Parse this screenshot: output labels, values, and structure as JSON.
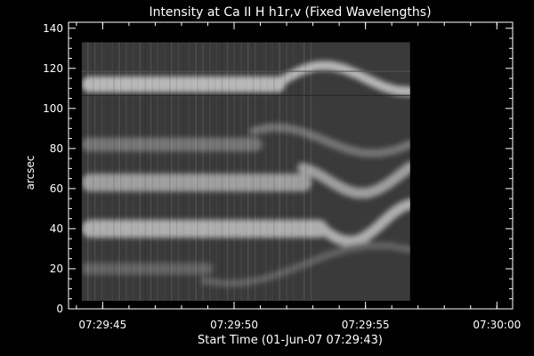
{
  "chart_data": {
    "type": "heatmap",
    "title": "Intensity at Ca II H h1r,v (Fixed Wavelengths)",
    "xlabel": "Start Time (01-Jun-07 07:29:43)",
    "ylabel": "arcsec",
    "xlim_seconds": [
      0.7,
      17.6
    ],
    "ylim": [
      0,
      143
    ],
    "x_ticks": [
      {
        "value": 2,
        "label": "07:29:45"
      },
      {
        "value": 7,
        "label": "07:29:50"
      },
      {
        "value": 12,
        "label": "07:29:55"
      },
      {
        "value": 17,
        "label": "07:30:00"
      }
    ],
    "y_ticks": [
      0,
      20,
      40,
      60,
      80,
      100,
      120,
      140
    ],
    "image_extent": {
      "x_start": 1.2,
      "x_end": 13.7,
      "y_start": 4,
      "y_end": 133
    },
    "reference_lines_y": [
      106.5,
      118.5
    ],
    "colors": {
      "background": "#000000",
      "axes": "#ffffff",
      "image_low": "#3a3a3a",
      "image_high": "#e0e0e0"
    },
    "bright_bands": [
      {
        "y_center": 112,
        "width": 8,
        "x_end_fraction": 0.62,
        "intensity": 0.75
      },
      {
        "y_center": 82,
        "width": 7,
        "x_end_fraction": 0.55,
        "intensity": 0.35
      },
      {
        "y_center": 63,
        "width": 9,
        "x_end_fraction": 0.7,
        "intensity": 0.6
      },
      {
        "y_center": 40,
        "width": 9,
        "x_end_fraction": 0.75,
        "intensity": 0.7
      },
      {
        "y_center": 20,
        "width": 6,
        "x_end_fraction": 0.4,
        "intensity": 0.25
      }
    ]
  }
}
